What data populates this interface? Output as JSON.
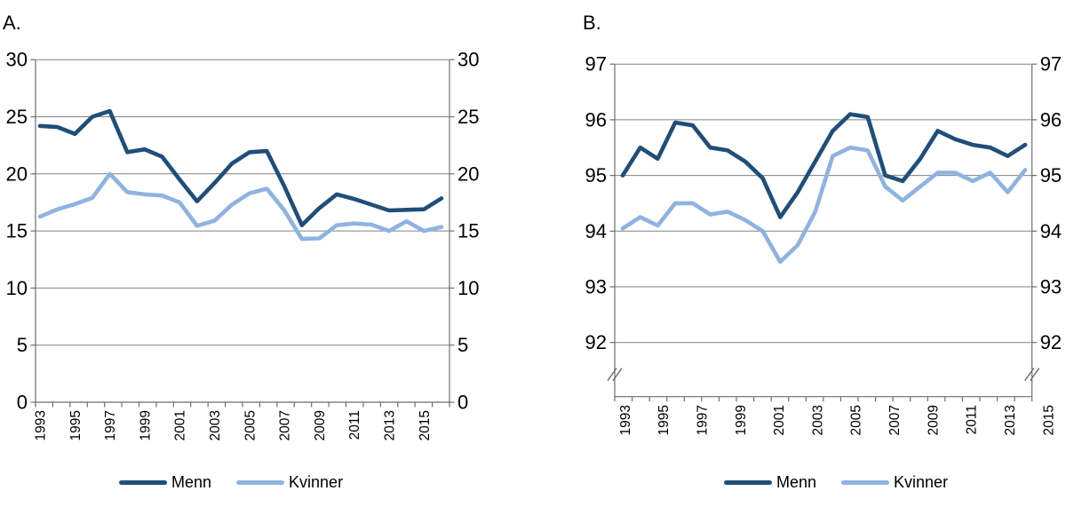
{
  "figure": {
    "background": "#ffffff",
    "grid_color": "#808080",
    "axis_color": "#6e6e6e",
    "text_color": "#000000"
  },
  "chart_data": [
    {
      "type": "line",
      "panel_label": "A.",
      "x": [
        1993,
        1994,
        1995,
        1996,
        1997,
        1998,
        1999,
        2000,
        2001,
        2002,
        2003,
        2004,
        2005,
        2006,
        2007,
        2008,
        2009,
        2010,
        2011,
        2012,
        2013,
        2014,
        2015,
        2016
      ],
      "x_tick_labels": [
        "1993",
        "1995",
        "1997",
        "1999",
        "2001",
        "2003",
        "2005",
        "2007",
        "2009",
        "2011",
        "2013",
        "2015"
      ],
      "ylim": [
        0,
        30
      ],
      "yticks": [
        0,
        5,
        10,
        15,
        20,
        25,
        30
      ],
      "y_labels_both_sides": true,
      "grid": true,
      "axis_break": false,
      "legend_position": "bottom",
      "series": [
        {
          "name": "Menn",
          "color": "#1f4e79",
          "values": [
            24.2,
            24.1,
            23.5,
            25.0,
            25.5,
            21.9,
            22.15,
            21.5,
            19.5,
            17.6,
            19.2,
            20.9,
            21.9,
            22.0,
            18.9,
            15.5,
            17.0,
            18.2,
            17.8,
            17.3,
            16.8,
            16.85,
            16.9,
            17.85
          ]
        },
        {
          "name": "Kvinner",
          "color": "#8fb3e0",
          "values": [
            16.25,
            16.9,
            17.35,
            17.9,
            20.0,
            18.4,
            18.2,
            18.1,
            17.5,
            15.45,
            15.9,
            17.3,
            18.3,
            18.7,
            16.8,
            14.3,
            14.35,
            15.5,
            15.65,
            15.55,
            15.0,
            15.85,
            15.0,
            15.35
          ]
        }
      ]
    },
    {
      "type": "line",
      "panel_label": "B.",
      "x": [
        1993,
        1994,
        1995,
        1996,
        1997,
        1998,
        1999,
        2000,
        2001,
        2002,
        2003,
        2004,
        2005,
        2006,
        2007,
        2008,
        2009,
        2010,
        2011,
        2012,
        2013,
        2014,
        2015,
        2016
      ],
      "x_tick_labels": [
        "1993",
        "1995",
        "1997",
        "1999",
        "2001",
        "2003",
        "2005",
        "2007",
        "2009",
        "2011",
        "2013",
        "2015"
      ],
      "ylim": [
        92,
        97
      ],
      "yticks": [
        92,
        93,
        94,
        95,
        96,
        97
      ],
      "y_labels_both_sides": true,
      "grid": true,
      "axis_break": true,
      "last_x_label_outside_plot": "2015",
      "legend_position": "bottom",
      "series": [
        {
          "name": "Menn",
          "color": "#1f4e79",
          "values": [
            95.0,
            95.5,
            95.3,
            95.95,
            95.9,
            95.5,
            95.45,
            95.25,
            94.95,
            94.25,
            94.7,
            95.25,
            95.8,
            96.1,
            96.05,
            95.0,
            94.9,
            95.3,
            95.8,
            95.65,
            95.55,
            95.5,
            95.35,
            95.55
          ]
        },
        {
          "name": "Kvinner",
          "color": "#8fb3e0",
          "values": [
            94.05,
            94.25,
            94.1,
            94.5,
            94.5,
            94.3,
            94.35,
            94.2,
            94.0,
            93.45,
            93.75,
            94.35,
            95.35,
            95.5,
            95.45,
            94.8,
            94.55,
            94.8,
            95.05,
            95.05,
            94.9,
            95.05,
            94.7,
            95.1
          ]
        }
      ]
    }
  ]
}
